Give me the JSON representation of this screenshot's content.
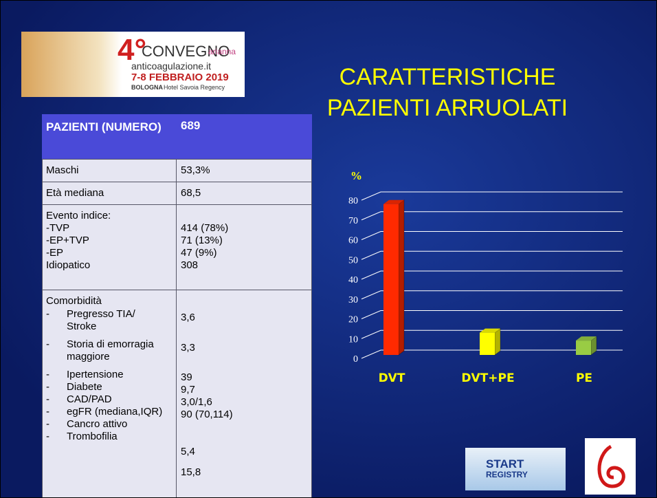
{
  "logo": {
    "number": "4°",
    "event": "CONVEGNO",
    "site": "anticoagulazione.it",
    "dates": "7-8 FEBBRAIO 2019",
    "city": "BOLOGNA",
    "venue": "Hotel Savoia Regency",
    "brand": "arianna"
  },
  "title": [
    "CARATTERISTICHE",
    "PAZIENTI ARRUOLATI"
  ],
  "table": {
    "header": [
      "PAZIENTI (NUMERO)",
      "689"
    ],
    "rows": [
      {
        "left": [
          "Maschi"
        ],
        "right": [
          "53,3%"
        ]
      },
      {
        "left": [
          "Età mediana"
        ],
        "right": [
          "68,5"
        ]
      },
      {
        "left": [
          "Evento indice:",
          "-TVP",
          "-EP+TVP",
          "-EP",
          "Idiopatico"
        ],
        "right": [
          "414 (78%)",
          "71 (13%)",
          "47 (9%)",
          "308"
        ]
      },
      {
        "left": [
          "Comorbidità"
        ],
        "bullet": "-",
        "items": [
          [
            "Pregresso TIA/",
            "Stroke"
          ],
          [
            "Storia di emorragia",
            "maggiore"
          ],
          [
            "Ipertensione"
          ],
          [
            "Diabete"
          ],
          [
            "CAD/PAD"
          ],
          [
            "egFR (mediana,IQR)"
          ],
          [
            "Cancro attivo"
          ],
          [
            "Trombofilia"
          ]
        ],
        "right": [
          "3,6",
          "3,3",
          "39",
          "9,7",
          "3,0/1,6",
          "90 (70,114)",
          "5,4",
          "15,8"
        ]
      }
    ]
  },
  "chart_data": {
    "type": "bar",
    "y_label": "%",
    "categories": [
      "DVT",
      "DVT+PE",
      "PE"
    ],
    "values": [
      78,
      13,
      9
    ],
    "colors": [
      "#ff2a00",
      "#ffff00",
      "#99cc44"
    ],
    "ylim": [
      0,
      80
    ],
    "yticks": [
      0,
      10,
      20,
      30,
      40,
      50,
      60,
      70,
      80
    ],
    "grid": true
  },
  "footer_logo": [
    "START",
    "REGISTRY"
  ]
}
